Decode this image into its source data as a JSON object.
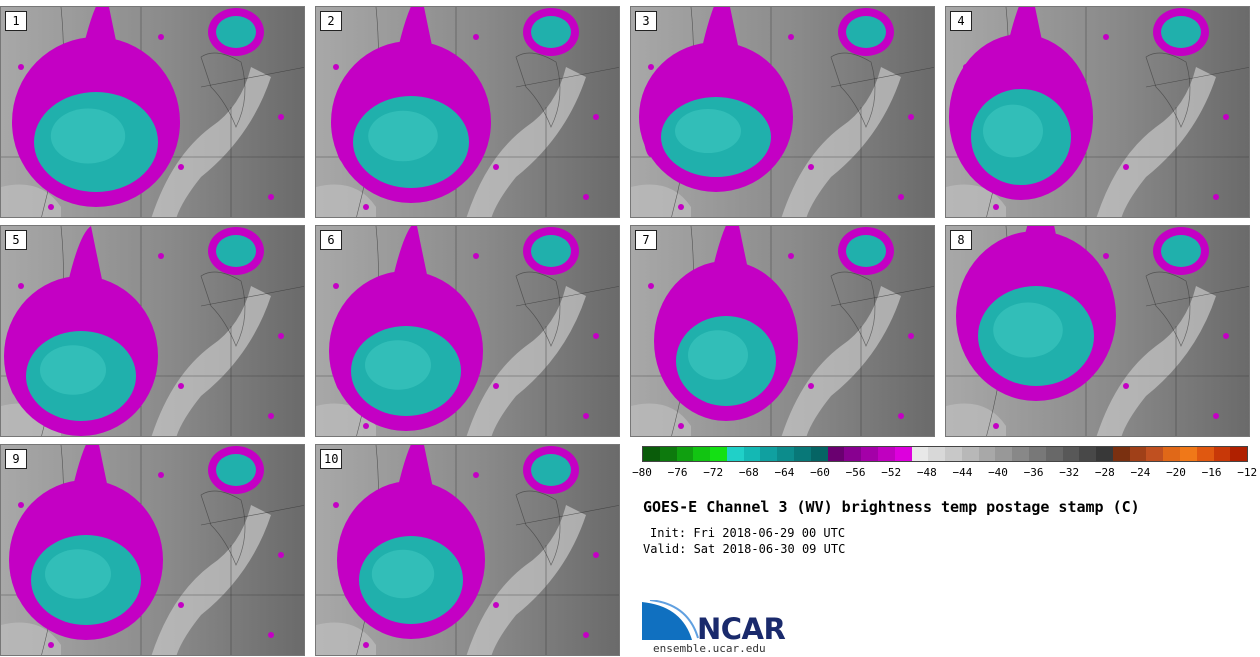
{
  "panels": [
    {
      "label": "1"
    },
    {
      "label": "2"
    },
    {
      "label": "3"
    },
    {
      "label": "4"
    },
    {
      "label": "5"
    },
    {
      "label": "6"
    },
    {
      "label": "7"
    },
    {
      "label": "8"
    },
    {
      "label": "9"
    },
    {
      "label": "10"
    }
  ],
  "colorbar": {
    "colors": [
      "#0a5c0a",
      "#0d7a0d",
      "#10a010",
      "#12c412",
      "#14e014",
      "#20d0c8",
      "#14b8b4",
      "#10a0a0",
      "#0c8c8c",
      "#087878",
      "#056464",
      "#6a0070",
      "#880090",
      "#a400a8",
      "#c000c0",
      "#dd00dd",
      "#e8e8e8",
      "#d8d8d8",
      "#c8c8c8",
      "#b8b8b8",
      "#a8a8a8",
      "#989898",
      "#888888",
      "#787878",
      "#686868",
      "#585858",
      "#484848",
      "#383838",
      "#7a3010",
      "#a04018",
      "#c05020",
      "#e06818",
      "#f07818",
      "#e05810",
      "#c83808",
      "#b02000"
    ],
    "tick_labels": [
      "−80",
      "−76",
      "−72",
      "−68",
      "−64",
      "−60",
      "−56",
      "−52",
      "−48",
      "−44",
      "−40",
      "−36",
      "−32",
      "−28",
      "−24",
      "−20",
      "−16",
      "−12"
    ]
  },
  "title": "GOES-E Channel 3 (WV) brightness temp postage stamp (C)",
  "init": "Init: Fri 2018-06-29 00 UTC",
  "valid": "Valid: Sat 2018-06-30 09 UTC",
  "logo": {
    "text": "NCAR",
    "website": "ensemble.ucar.edu"
  },
  "colors": {
    "cold_core": "#20b8b0",
    "anvil": "#c800c8",
    "background_gray": "#8c8c8c"
  }
}
